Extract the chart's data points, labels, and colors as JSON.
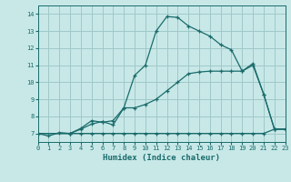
{
  "xlabel": "Humidex (Indice chaleur)",
  "xlim": [
    0,
    23
  ],
  "ylim": [
    6.5,
    14.5
  ],
  "xticks": [
    0,
    1,
    2,
    3,
    4,
    5,
    6,
    7,
    8,
    9,
    10,
    11,
    12,
    13,
    14,
    15,
    16,
    17,
    18,
    19,
    20,
    21,
    22,
    23
  ],
  "yticks": [
    7,
    8,
    9,
    10,
    11,
    12,
    13,
    14
  ],
  "bg_color": "#c8e8e8",
  "line_color": "#1a6b6b",
  "grid_color": "#a0c8c8",
  "curve1_x": [
    0,
    1,
    2,
    3,
    4,
    5,
    6,
    7,
    8,
    9,
    10,
    11,
    12,
    13,
    14,
    15,
    16,
    17,
    18,
    19,
    20,
    21,
    22,
    23
  ],
  "curve1_y": [
    7.0,
    6.85,
    7.05,
    7.0,
    7.0,
    7.0,
    7.0,
    7.0,
    7.0,
    7.0,
    7.0,
    7.0,
    7.0,
    7.0,
    7.0,
    7.0,
    7.0,
    7.0,
    7.0,
    7.0,
    7.0,
    7.0,
    7.25,
    7.25
  ],
  "curve2_x": [
    0,
    3,
    4,
    5,
    6,
    7,
    8,
    9,
    10,
    11,
    12,
    13,
    14,
    15,
    16,
    17,
    18,
    19,
    20,
    21,
    22,
    23
  ],
  "curve2_y": [
    7.0,
    7.0,
    7.25,
    7.55,
    7.7,
    7.5,
    8.5,
    8.5,
    8.7,
    9.0,
    9.5,
    10.0,
    10.5,
    10.6,
    10.65,
    10.65,
    10.65,
    10.65,
    11.0,
    9.3,
    7.25,
    7.25
  ],
  "curve3_x": [
    0,
    3,
    4,
    5,
    6,
    7,
    8,
    9,
    10,
    11,
    12,
    13,
    14,
    15,
    16,
    17,
    18,
    19,
    20,
    21,
    22,
    23
  ],
  "curve3_y": [
    7.0,
    7.0,
    7.3,
    7.75,
    7.65,
    7.75,
    8.5,
    10.4,
    11.0,
    13.0,
    13.85,
    13.8,
    13.3,
    13.0,
    12.7,
    12.2,
    11.9,
    10.65,
    11.1,
    9.3,
    7.25,
    7.25
  ]
}
